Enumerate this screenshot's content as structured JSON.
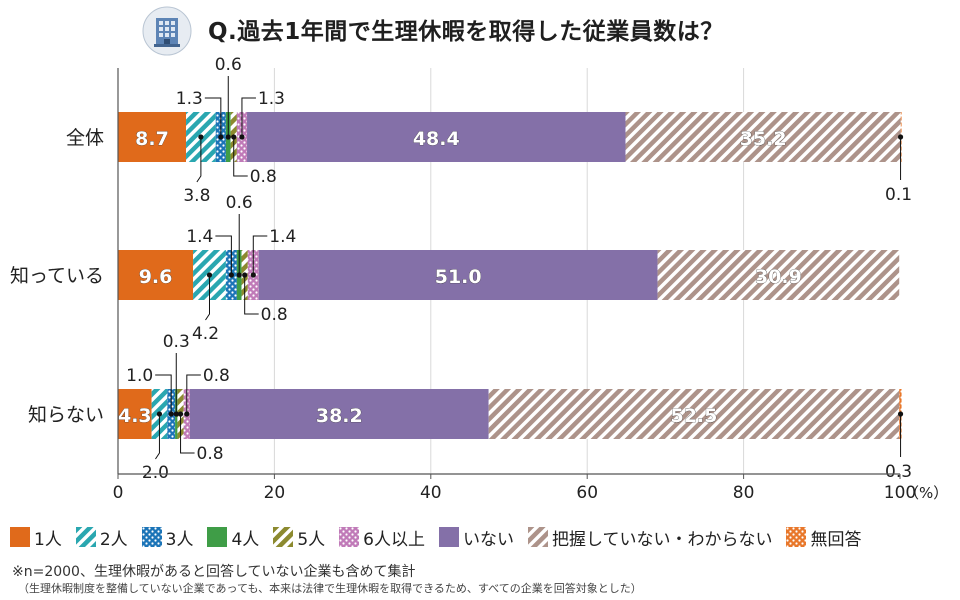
{
  "title": "Q.過去1年間で生理休暇を取得した従業員数は？",
  "icon": "office-building-icon",
  "chart_data": {
    "type": "bar",
    "orientation": "horizontal",
    "stacked": true,
    "categories": [
      "全体",
      "知っている",
      "知らない"
    ],
    "series": [
      {
        "name": "1人",
        "values": [
          8.7,
          9.6,
          4.3
        ],
        "color": "#e06a1b",
        "pattern": "solid"
      },
      {
        "name": "2人",
        "values": [
          3.8,
          4.2,
          2.0
        ],
        "color": "#2aa7b0",
        "pattern": "stripe"
      },
      {
        "name": "3人",
        "values": [
          1.3,
          1.4,
          1.0
        ],
        "color": "#1b74b7",
        "pattern": "dots"
      },
      {
        "name": "4人",
        "values": [
          0.6,
          0.6,
          0.3
        ],
        "color": "#3f9d47",
        "pattern": "solid"
      },
      {
        "name": "5人",
        "values": [
          0.8,
          0.8,
          0.8
        ],
        "color": "#8c8a2f",
        "pattern": "stripe"
      },
      {
        "name": "6人以上",
        "values": [
          1.3,
          1.4,
          0.8
        ],
        "color": "#c07ab8",
        "pattern": "dots"
      },
      {
        "name": "いない",
        "values": [
          48.4,
          51.0,
          38.2
        ],
        "color": "#8470a8",
        "pattern": "solid"
      },
      {
        "name": "把握していない・わからない",
        "values": [
          35.2,
          30.9,
          52.5
        ],
        "color": "#ad938a",
        "pattern": "stripe"
      },
      {
        "name": "無回答",
        "values": [
          0.1,
          0.0,
          0.3
        ],
        "color": "#e8772a",
        "pattern": "dots"
      }
    ],
    "inside_labels": [
      [
        "8.7",
        "48.4",
        "35.2"
      ],
      [
        "9.6",
        "51.0",
        "30.9"
      ],
      [
        "4.3",
        "38.2",
        "52.5"
      ]
    ],
    "callouts": [
      {
        "above": [
          "1.3",
          "0.6",
          "1.3"
        ],
        "below": [
          "3.8",
          "0.8"
        ],
        "end": "0.1"
      },
      {
        "above": [
          "1.4",
          "0.6",
          "1.4"
        ],
        "below": [
          "4.2",
          "0.8"
        ],
        "end": ""
      },
      {
        "above": [
          "1.0",
          "0.3",
          "0.8"
        ],
        "below": [
          "2.0",
          "0.8"
        ],
        "end": "0.3"
      }
    ],
    "xlim": [
      0,
      100
    ],
    "x_ticks": [
      "0",
      "20",
      "40",
      "60",
      "80",
      "100"
    ],
    "x_unit": "（%）",
    "legend_position": "bottom"
  },
  "notes": {
    "line1": "※n=2000、生理休暇があると回答していない企業も含めて集計",
    "line2": "（生理休暇制度を整備していない企業であっても、本来は法律で生理休暇を取得できるため、すべての企業を回答対象とした）"
  }
}
